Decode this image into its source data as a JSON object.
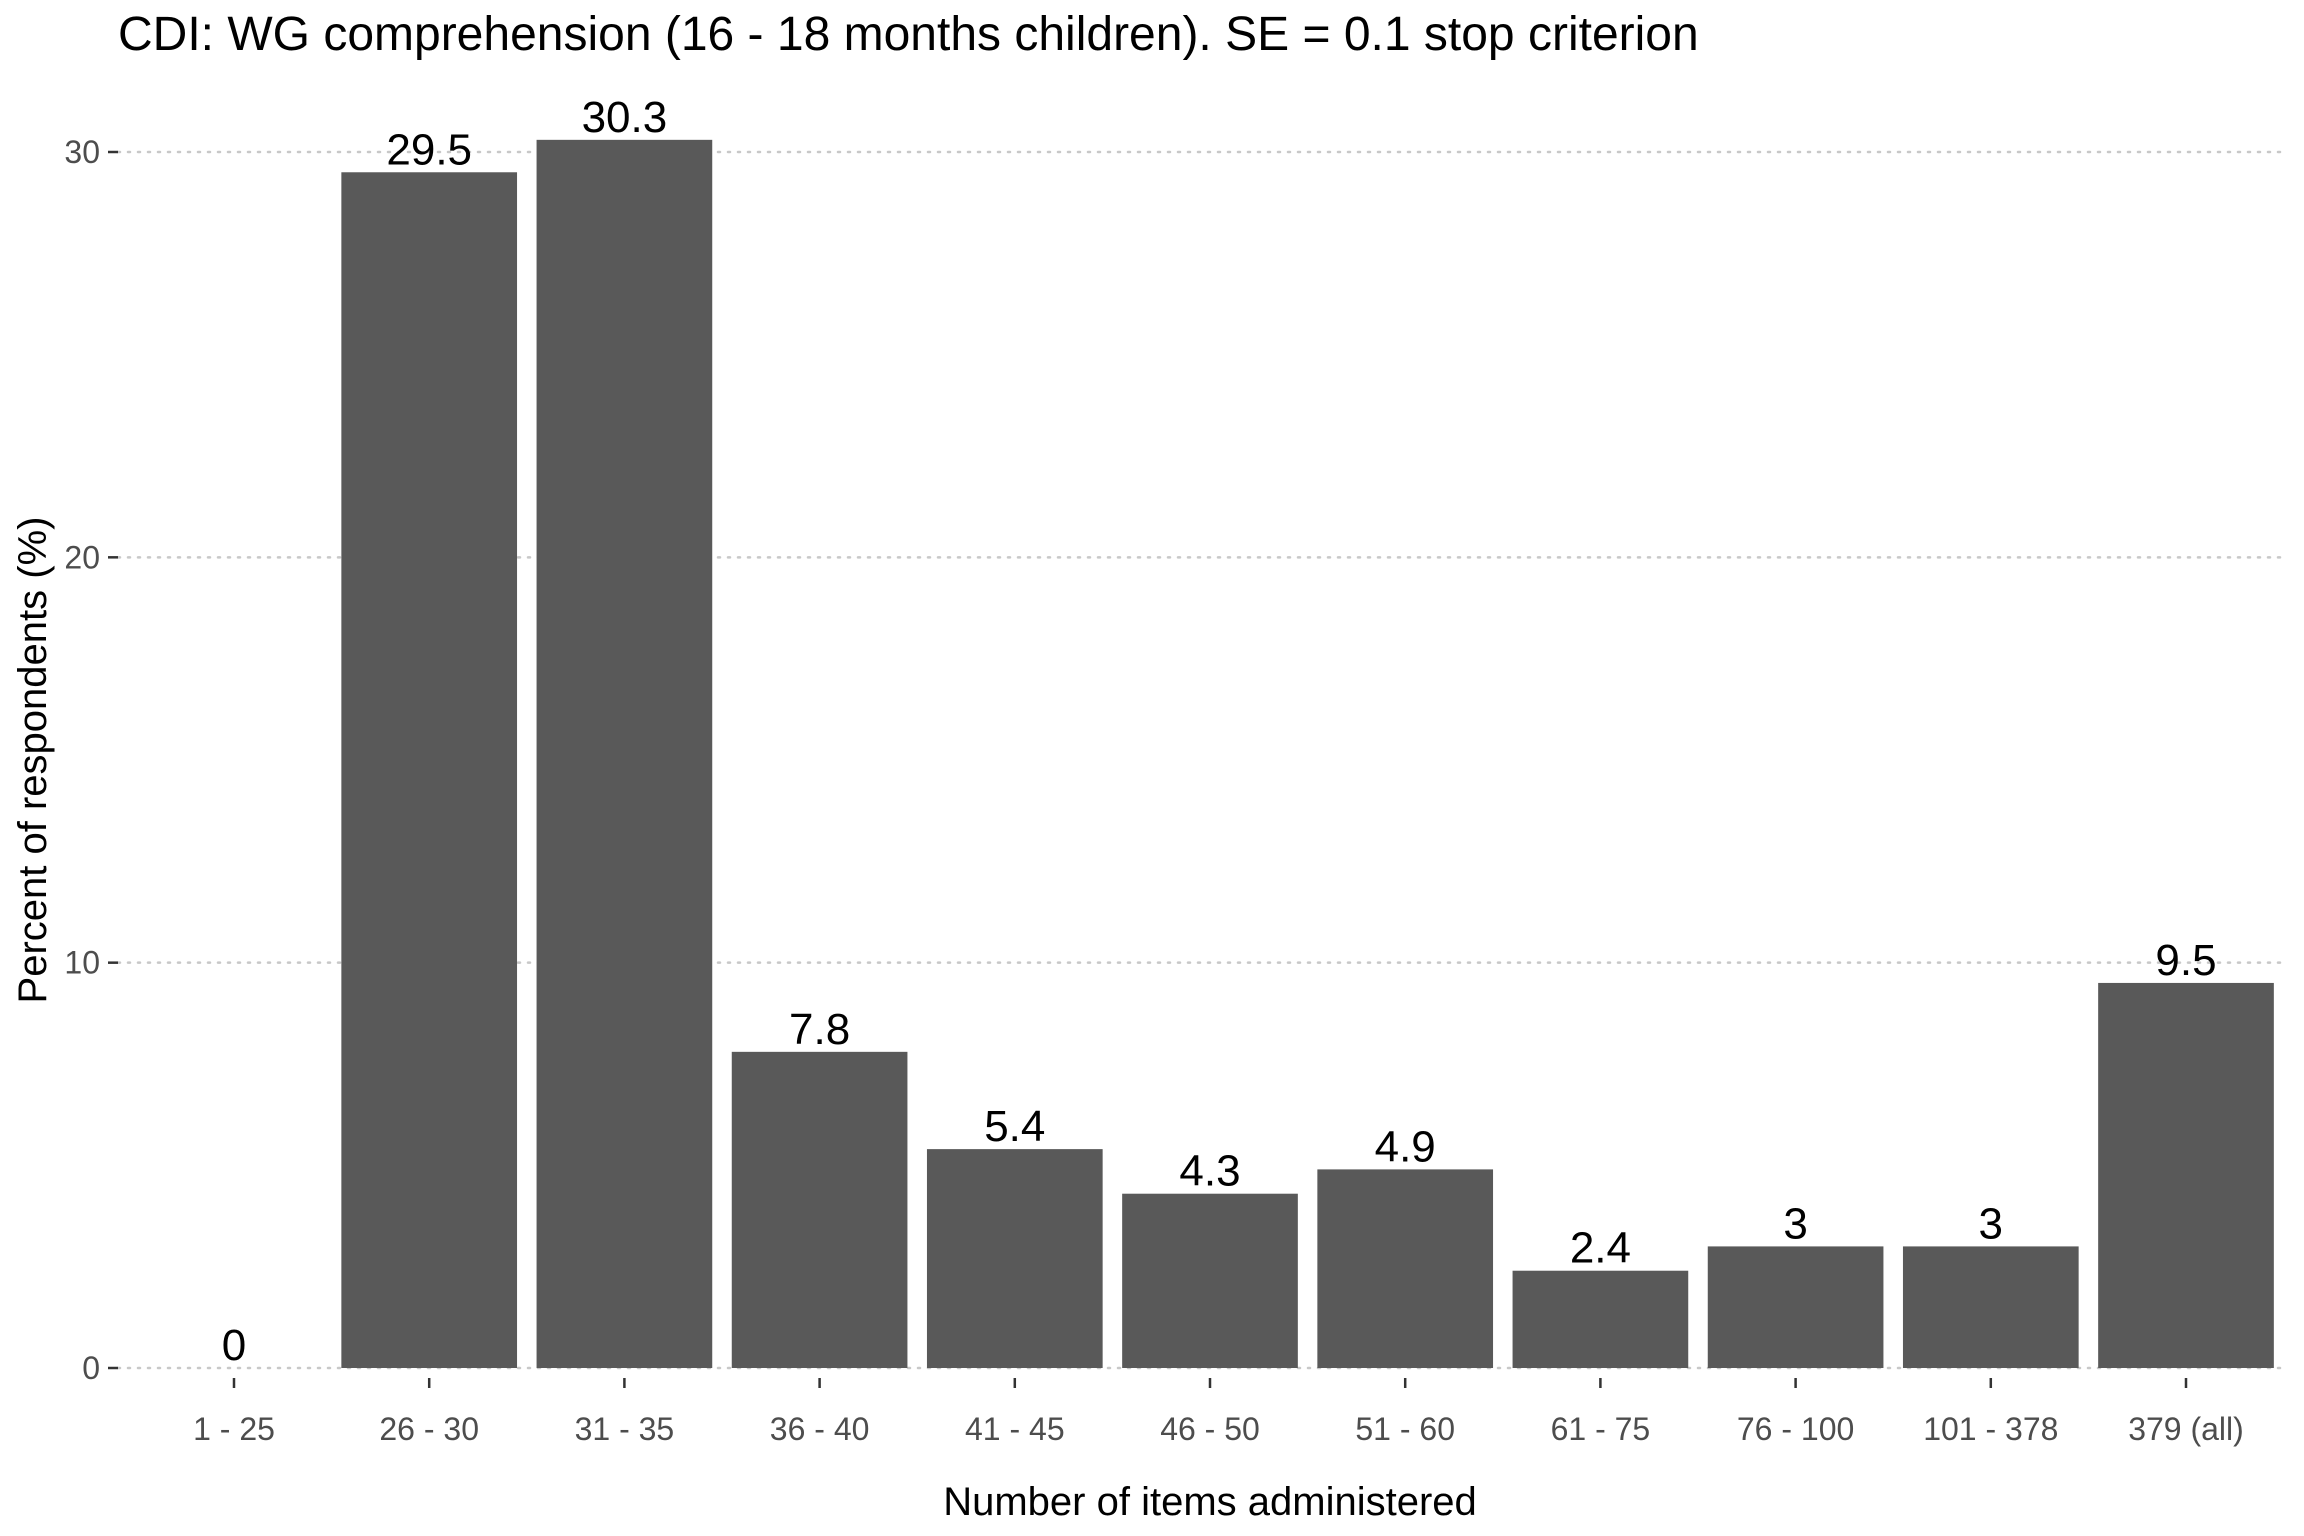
{
  "chart_data": {
    "type": "bar",
    "title": "CDI: WG comprehension (16 - 18 months children). SE = 0.1 stop criterion",
    "xlabel": "Number of items administered",
    "ylabel": "Percent of respondents (%)",
    "categories": [
      "1 - 25",
      "26 - 30",
      "31 - 35",
      "36 - 40",
      "41 - 45",
      "46 - 50",
      "51 - 60",
      "61 - 75",
      "76 - 100",
      "101 - 378",
      "379 (all)"
    ],
    "values": [
      0,
      29.5,
      30.3,
      7.8,
      5.4,
      4.3,
      4.9,
      2.4,
      3,
      3,
      9.5
    ],
    "data_labels": [
      "0",
      "29.5",
      "30.3",
      "7.8",
      "5.4",
      "4.3",
      "4.9",
      "2.4",
      "3",
      "3",
      "9.5"
    ],
    "yticks": [
      0,
      10,
      20,
      30
    ],
    "ytick_labels": [
      "0",
      "10",
      "20",
      "30"
    ],
    "ylim": [
      0,
      30.3
    ],
    "grid": true,
    "legend": "none",
    "bar_color": "#595959"
  }
}
